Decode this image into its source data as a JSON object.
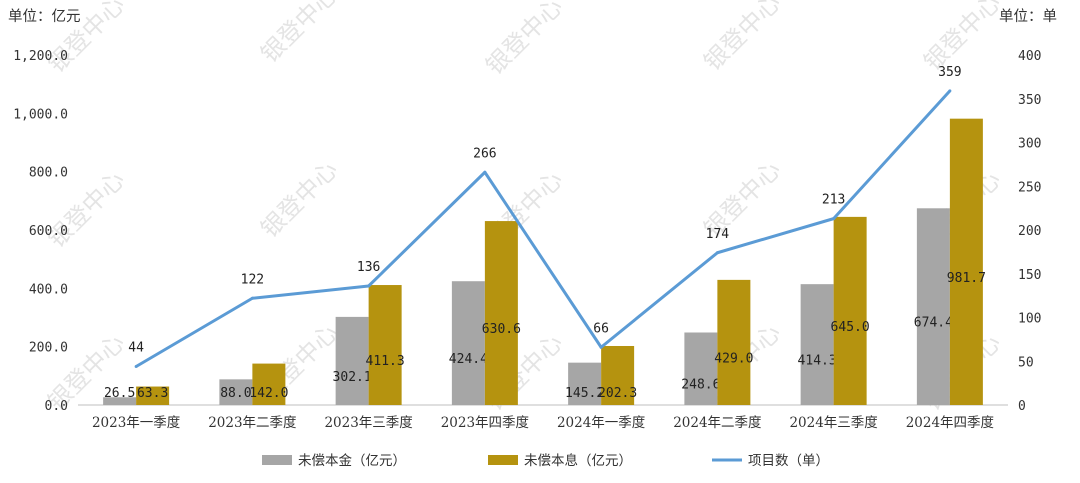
{
  "chart_data": {
    "type": "bar",
    "left_axis_unit": "单位：亿元",
    "right_axis_unit": "单位：单",
    "categories": [
      "2023年一季度",
      "2023年二季度",
      "2023年三季度",
      "2023年四季度",
      "2024年一季度",
      "2024年二季度",
      "2024年三季度",
      "2024年四季度"
    ],
    "left_ticks": [
      "0.0",
      "200.0",
      "400.0",
      "600.0",
      "800.0",
      "1,000.0",
      "1,200.0"
    ],
    "right_ticks": [
      "0",
      "50",
      "100",
      "150",
      "200",
      "250",
      "300",
      "350",
      "400"
    ],
    "ylim_left": [
      0,
      1200
    ],
    "ylim_right": [
      0,
      400
    ],
    "series": [
      {
        "name": "未偿本金（亿元）",
        "kind": "bar",
        "axis": "left",
        "color": "#a6a6a6",
        "values": [
          26.5,
          88.0,
          302.1,
          424.4,
          145.2,
          248.6,
          414.3,
          674.4
        ],
        "labels": [
          "26.5",
          "88.0",
          "302.1",
          "424.4",
          "145.2",
          "248.6",
          "414.3",
          "674.4"
        ]
      },
      {
        "name": "未偿本息（亿元）",
        "kind": "bar",
        "axis": "left",
        "color": "#b5930f",
        "values": [
          63.3,
          142.0,
          411.3,
          630.6,
          202.3,
          429.0,
          645.0,
          981.7
        ],
        "labels": [
          "63.3",
          "142.0",
          "411.3",
          "630.6",
          "202.3",
          "429.0",
          "645.0",
          "981.7"
        ]
      },
      {
        "name": "项目数（单）",
        "kind": "line",
        "axis": "right",
        "color": "#5b9bd5",
        "values": [
          44,
          122,
          136,
          266,
          66,
          174,
          213,
          359
        ],
        "labels": [
          "44",
          "122",
          "136",
          "266",
          "66",
          "174",
          "213",
          "359"
        ]
      }
    ],
    "legend_position": "bottom",
    "grid": false
  },
  "watermark": "银登中心"
}
